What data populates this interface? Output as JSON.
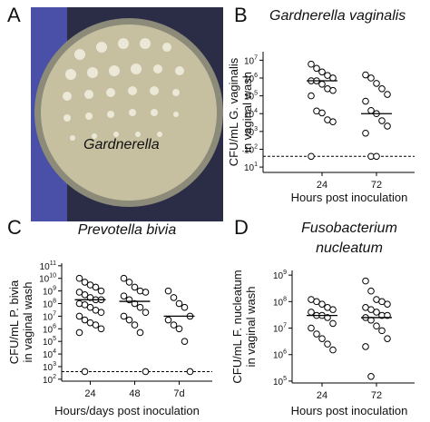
{
  "panel_a": {
    "label": "A",
    "caption": "Gardnerella"
  },
  "chart_data": [
    {
      "type": "strip",
      "panel_label": "B",
      "title": [
        "Gardnerella vaginalis"
      ],
      "y_label": [
        "CFU/mL G. vaginalis",
        "in vaginal wash"
      ],
      "x_label": "Hours post inoculation",
      "categories": [
        "24",
        "72"
      ],
      "log_scale": true,
      "color": "#000000",
      "values": [
        [
          6000000,
          3500000,
          2200000,
          1400000,
          1000000,
          700000,
          700000,
          450000,
          250000,
          200000,
          100000,
          14000,
          11000,
          4500,
          3500,
          40
        ],
        [
          1500000,
          1000000,
          500000,
          250000,
          120000,
          50000,
          15000,
          10000,
          4000,
          2000,
          800,
          40,
          40
        ]
      ],
      "medians": [
        700000,
        10000
      ],
      "lod": 40,
      "ylim": [
        5,
        30000000
      ],
      "yticks": [
        {
          "value": 10,
          "label": "10^1"
        },
        {
          "value": 100,
          "label": "10^2"
        },
        {
          "value": 1000,
          "label": "10^3"
        },
        {
          "value": 10000,
          "label": "10^4"
        },
        {
          "value": 100000,
          "label": "10^5"
        },
        {
          "value": 1000000,
          "label": "10^6"
        },
        {
          "value": 10000000,
          "label": "10^7"
        }
      ]
    },
    {
      "type": "strip",
      "panel_label": "C",
      "title": [
        "Prevotella bivia"
      ],
      "y_label": [
        "CFU/mL P. bivia",
        "in vaginal wash"
      ],
      "x_label": "Hours/days post inoculation",
      "categories": [
        "24",
        "48",
        "7d"
      ],
      "log_scale": true,
      "color": "#000000",
      "values": [
        [
          10000000000,
          5000000000,
          3000000000,
          2000000000,
          1000000000,
          800000000,
          500000000,
          300000000,
          200000000,
          200000000,
          100000000,
          80000000,
          50000000,
          30000000,
          20000000,
          10000000,
          5000000,
          3000000,
          2000000,
          1000000,
          500000,
          400
        ],
        [
          10000000000,
          5000000000,
          2000000000,
          1000000000,
          800000000,
          400000000,
          200000000,
          100000000,
          50000000,
          20000000,
          10000000,
          5000000,
          2000000,
          500000,
          400
        ],
        [
          1000000000,
          300000000,
          100000000,
          50000000,
          10000000,
          5000000,
          2000000,
          1000000,
          100000,
          400
        ]
      ],
      "medians": [
        200000000,
        150000000,
        10000000
      ],
      "lod": 400,
      "ylim": [
        70,
        160000000000
      ],
      "yticks": [
        {
          "value": 100,
          "label": "10^2"
        },
        {
          "value": 1000,
          "label": "10^3"
        },
        {
          "value": 10000,
          "label": "10^4"
        },
        {
          "value": 100000,
          "label": "10^5"
        },
        {
          "value": 1000000,
          "label": "10^6"
        },
        {
          "value": 10000000,
          "label": "10^7"
        },
        {
          "value": 100000000,
          "label": "10^8"
        },
        {
          "value": 1000000000,
          "label": "10^9"
        },
        {
          "value": 10000000000,
          "label": "10^10"
        },
        {
          "value": 100000000000,
          "label": "10^11"
        }
      ]
    },
    {
      "type": "strip",
      "panel_label": "D",
      "title": [
        "Fusobacterium",
        "nucleatum"
      ],
      "y_label": [
        "CFU/mL F. nucleatum",
        "in vaginal wash"
      ],
      "x_label": "Hours post inoculation",
      "categories": [
        "24",
        "72"
      ],
      "log_scale": true,
      "color": "#000000",
      "values": [
        [
          120000000,
          100000000,
          80000000,
          60000000,
          50000000,
          40000000,
          30000000,
          30000000,
          25000000,
          15000000,
          10000000,
          6000000,
          4000000,
          2500000,
          1500000
        ],
        [
          600000000,
          250000000,
          120000000,
          100000000,
          80000000,
          60000000,
          50000000,
          40000000,
          30000000,
          30000000,
          25000000,
          20000000,
          12000000,
          8000000,
          4000000,
          2000000,
          150000
        ]
      ],
      "medians": [
        30000000,
        25000000
      ],
      "ylim": [
        85000,
        1500000000
      ],
      "yticks": [
        {
          "value": 100000,
          "label": "10^5"
        },
        {
          "value": 1000000,
          "label": "10^6"
        },
        {
          "value": 10000000,
          "label": "10^7"
        },
        {
          "value": 100000000,
          "label": "10^8"
        },
        {
          "value": 1000000000,
          "label": "10^9"
        }
      ]
    }
  ]
}
